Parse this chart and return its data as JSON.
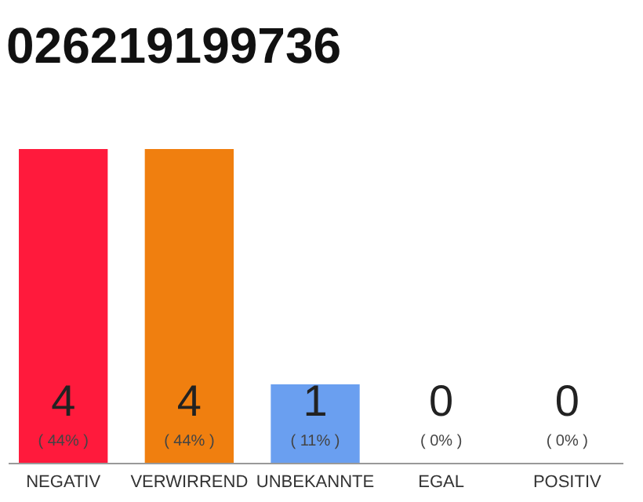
{
  "chart_data": {
    "type": "bar",
    "title": "026219199736",
    "categories": [
      "NEGATIV",
      "VERWIRREND",
      "UNBEKANNTE",
      "EGAL",
      "POSITIV"
    ],
    "values": [
      4,
      4,
      1,
      0,
      0
    ],
    "colors": [
      "#ff1a3c",
      "#f07f0f",
      "#6a9ff0",
      "#dddddd",
      "#dddddd"
    ],
    "ylim": [
      0,
      4
    ],
    "data_labels": true,
    "tick_labels": "x",
    "annotations": [
      {
        "text": "( 44% )",
        "x": "NEGATIV",
        "y": 0
      },
      {
        "text": "( 44% )",
        "x": "VERWIRREND",
        "y": 0
      },
      {
        "text": "( 11% )",
        "x": "UNBEKANNTE",
        "y": 0
      },
      {
        "text": "( 0% )",
        "x": "EGAL",
        "y": 0
      },
      {
        "text": "( 0% )",
        "x": "POSITIV",
        "y": 0
      }
    ]
  }
}
